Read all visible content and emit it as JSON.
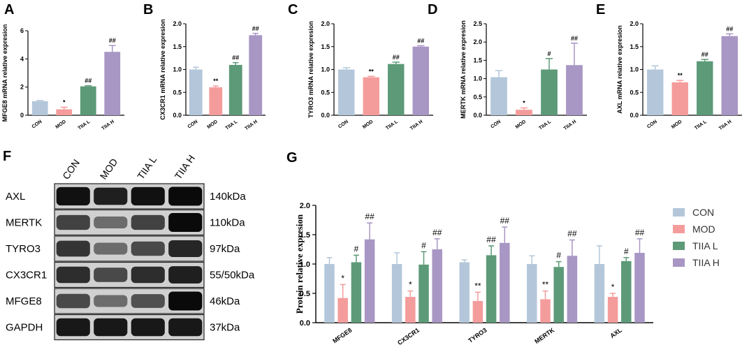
{
  "colors": {
    "CON": "#b4c7da",
    "MOD": "#f49c9c",
    "TIIA L": "#5d9a78",
    "TIIA H": "#a896c4"
  },
  "chart_data": [
    {
      "id": "A",
      "type": "bar",
      "title": "",
      "ylabel": "MFGE8 mRNA relative expresion",
      "ylim": [
        0,
        6
      ],
      "yticks": [
        0,
        2,
        4,
        6
      ],
      "categories": [
        "CON",
        "MOD",
        "TIIA L",
        "TIIA H"
      ],
      "values": [
        1.0,
        0.42,
        2.05,
        4.5
      ],
      "errors": [
        0.05,
        0.15,
        0.05,
        0.45
      ],
      "sig": [
        "",
        "*",
        "##",
        "##"
      ]
    },
    {
      "id": "B",
      "type": "bar",
      "title": "",
      "ylabel": "CX3CR1 mRNA relative expresion",
      "ylim": [
        0,
        2.0
      ],
      "yticks": [
        0.0,
        0.5,
        1.0,
        1.5,
        2.0
      ],
      "categories": [
        "CON",
        "MOD",
        "TIIA L",
        "TIIA H"
      ],
      "values": [
        1.0,
        0.61,
        1.1,
        1.75
      ],
      "errors": [
        0.05,
        0.03,
        0.05,
        0.04
      ],
      "sig": [
        "",
        "**",
        "##",
        "##"
      ]
    },
    {
      "id": "C",
      "type": "bar",
      "title": "",
      "ylabel": "TYRO3 mRNA relative expresion",
      "ylim": [
        0,
        2.0
      ],
      "yticks": [
        0.0,
        0.5,
        1.0,
        1.5,
        2.0
      ],
      "categories": [
        "CON",
        "MOD",
        "TIIA L",
        "TIIA H"
      ],
      "values": [
        1.0,
        0.83,
        1.12,
        1.5
      ],
      "errors": [
        0.04,
        0.02,
        0.04,
        0.02
      ],
      "sig": [
        "",
        "**",
        "##",
        "##"
      ]
    },
    {
      "id": "D",
      "type": "bar",
      "title": "",
      "ylabel": "MERTK mRNA relative expresion",
      "ylim": [
        0,
        2.5
      ],
      "yticks": [
        0.0,
        0.5,
        1.0,
        1.5,
        2.0,
        2.5
      ],
      "categories": [
        "CON",
        "MOD",
        "TIIA L",
        "TIIA H"
      ],
      "values": [
        1.04,
        0.15,
        1.25,
        1.37
      ],
      "errors": [
        0.18,
        0.05,
        0.3,
        0.6
      ],
      "sig": [
        "",
        "*",
        "#",
        "##"
      ]
    },
    {
      "id": "E",
      "type": "bar",
      "title": "",
      "ylabel": "AXL mRNA relative expresion",
      "ylim": [
        0,
        2.0
      ],
      "yticks": [
        0.0,
        0.5,
        1.0,
        1.5,
        2.0
      ],
      "categories": [
        "CON",
        "MOD",
        "TIIA L",
        "TIIA H"
      ],
      "values": [
        1.0,
        0.72,
        1.18,
        1.73
      ],
      "errors": [
        0.08,
        0.04,
        0.04,
        0.05
      ],
      "sig": [
        "",
        "**",
        "##",
        "##"
      ]
    },
    {
      "id": "G",
      "type": "bar",
      "title": "",
      "ylabel": "Protein relative expresion",
      "ylim": [
        0,
        2.0
      ],
      "yticks": [
        0.0,
        0.5,
        1.0,
        1.5,
        2.0
      ],
      "categories": [
        "MFGE8",
        "CX3CR1",
        "TYRO3",
        "MERTK",
        "AXL"
      ],
      "legend_position": "right",
      "series": [
        {
          "name": "CON",
          "values": [
            1.0,
            1.0,
            1.03,
            1.0,
            1.0
          ],
          "errors": [
            0.11,
            0.19,
            0.04,
            0.14,
            0.31
          ],
          "sig": [
            "",
            "",
            "",
            "",
            ""
          ]
        },
        {
          "name": "MOD",
          "values": [
            0.42,
            0.44,
            0.37,
            0.4,
            0.44
          ],
          "errors": [
            0.23,
            0.1,
            0.15,
            0.14,
            0.06
          ],
          "sig": [
            "*",
            "*",
            "**",
            "**",
            "*"
          ]
        },
        {
          "name": "TIIA L",
          "values": [
            1.03,
            0.99,
            1.15,
            0.95,
            1.05
          ],
          "errors": [
            0.12,
            0.22,
            0.16,
            0.09,
            0.06
          ],
          "sig": [
            "#",
            "#",
            "##",
            "#",
            "#"
          ]
        },
        {
          "name": "TIIA H",
          "values": [
            1.42,
            1.25,
            1.36,
            1.14,
            1.19
          ],
          "errors": [
            0.28,
            0.18,
            0.27,
            0.27,
            0.24
          ],
          "sig": [
            "##",
            "##",
            "##",
            "##",
            "##"
          ]
        }
      ]
    }
  ],
  "blot": {
    "lanes": [
      "CON",
      "MOD",
      "TIIA L",
      "TIIA H"
    ],
    "rows": [
      {
        "label": "AXL",
        "kda": "140kDa",
        "intensity": [
          0.95,
          0.85,
          0.95,
          1.0
        ]
      },
      {
        "label": "MERTK",
        "kda": "110kDa",
        "intensity": [
          0.6,
          0.3,
          0.6,
          1.0
        ]
      },
      {
        "label": "TYRO3",
        "kda": "97kDa",
        "intensity": [
          0.7,
          0.3,
          0.55,
          0.8
        ]
      },
      {
        "label": "CX3CR1",
        "kda": "55/50kDa",
        "intensity": [
          0.75,
          0.55,
          0.75,
          0.85
        ]
      },
      {
        "label": "MFGE8",
        "kda": "46kDa",
        "intensity": [
          0.55,
          0.3,
          0.5,
          1.0
        ]
      },
      {
        "label": "GAPDH",
        "kda": "37kDa",
        "intensity": [
          0.9,
          0.9,
          0.9,
          0.9
        ]
      }
    ]
  }
}
